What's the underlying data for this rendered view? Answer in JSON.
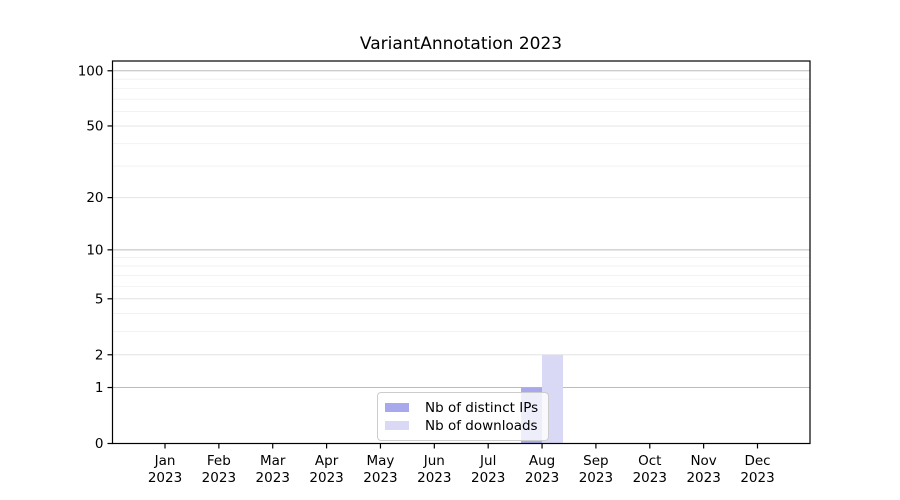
{
  "chart_data": {
    "type": "bar",
    "title": "VariantAnnotation 2023",
    "xlabel": "",
    "ylabel": "",
    "x_tick_labels": [
      {
        "month": "Jan",
        "year": "2023"
      },
      {
        "month": "Feb",
        "year": "2023"
      },
      {
        "month": "Mar",
        "year": "2023"
      },
      {
        "month": "Apr",
        "year": "2023"
      },
      {
        "month": "May",
        "year": "2023"
      },
      {
        "month": "Jun",
        "year": "2023"
      },
      {
        "month": "Jul",
        "year": "2023"
      },
      {
        "month": "Aug",
        "year": "2023"
      },
      {
        "month": "Sep",
        "year": "2023"
      },
      {
        "month": "Oct",
        "year": "2023"
      },
      {
        "month": "Nov",
        "year": "2023"
      },
      {
        "month": "Dec",
        "year": "2023"
      }
    ],
    "series": [
      {
        "name": "Nb of distinct IPs",
        "color": "#a8a8ec",
        "values": [
          0,
          0,
          0,
          0,
          0,
          0,
          0,
          1,
          0,
          0,
          0,
          0
        ]
      },
      {
        "name": "Nb of downloads",
        "color": "#d9d9f6",
        "values": [
          0,
          0,
          0,
          0,
          0,
          0,
          0,
          2,
          0,
          0,
          0,
          0
        ]
      }
    ],
    "y_ticks": [
      0,
      1,
      2,
      5,
      10,
      20,
      50,
      100
    ],
    "scale": "log1p",
    "ylim": [
      0,
      113
    ],
    "grid": "on",
    "gridlines": {
      "major": [
        1,
        10,
        100
      ],
      "labeled": [
        2,
        5,
        20,
        50
      ],
      "minor": [
        3,
        4,
        6,
        7,
        8,
        9,
        30,
        40,
        60,
        70,
        80,
        90
      ]
    },
    "legend_position": "lower center",
    "colors": {
      "axis": "#000000",
      "text": "#000000",
      "major_grid": "#bcbcbc",
      "labeled_grid": "#e4e4e4",
      "minor_grid": "#f2f2f2",
      "legend_border": "#cccccc"
    }
  }
}
